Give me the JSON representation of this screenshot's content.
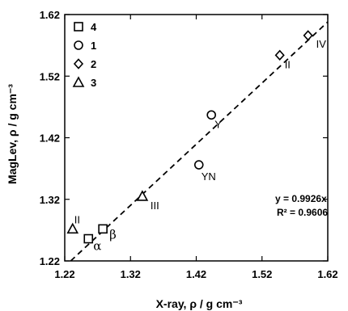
{
  "chart_data": {
    "type": "scatter",
    "xlabel": "X-ray, ρ / g cm⁻³",
    "ylabel": "MagLev, ρ / g cm⁻³",
    "xlim": [
      1.22,
      1.62
    ],
    "ylim": [
      1.22,
      1.62
    ],
    "x_ticks": [
      "1.22",
      "1.32",
      "1.42",
      "1.52",
      "1.62"
    ],
    "y_ticks": [
      "1.22",
      "1.32",
      "1.42",
      "1.52",
      "1.62"
    ],
    "grid": false,
    "legend_position": "top-left",
    "series": [
      {
        "name": "4",
        "marker": "square",
        "points": [
          {
            "x": 1.256,
            "y": 1.256,
            "label": "α"
          },
          {
            "x": 1.278,
            "y": 1.272,
            "label": "β"
          }
        ]
      },
      {
        "name": "1",
        "marker": "circle",
        "points": [
          {
            "x": 1.443,
            "y": 1.457,
            "label": "Y"
          },
          {
            "x": 1.424,
            "y": 1.376,
            "label": "YN"
          }
        ]
      },
      {
        "name": "2",
        "marker": "diamond",
        "points": [
          {
            "x": 1.547,
            "y": 1.554,
            "label": "II"
          },
          {
            "x": 1.59,
            "y": 1.586,
            "label": "IV"
          }
        ]
      },
      {
        "name": "3",
        "marker": "triangle",
        "points": [
          {
            "x": 1.232,
            "y": 1.272,
            "label": "II"
          },
          {
            "x": 1.338,
            "y": 1.325,
            "label": "III"
          }
        ]
      }
    ],
    "fit": {
      "slope": 0.9926,
      "style": "dashed"
    },
    "annotations": {
      "equation": "y = 0.9926x",
      "r2": "R² = 0.9606"
    }
  }
}
